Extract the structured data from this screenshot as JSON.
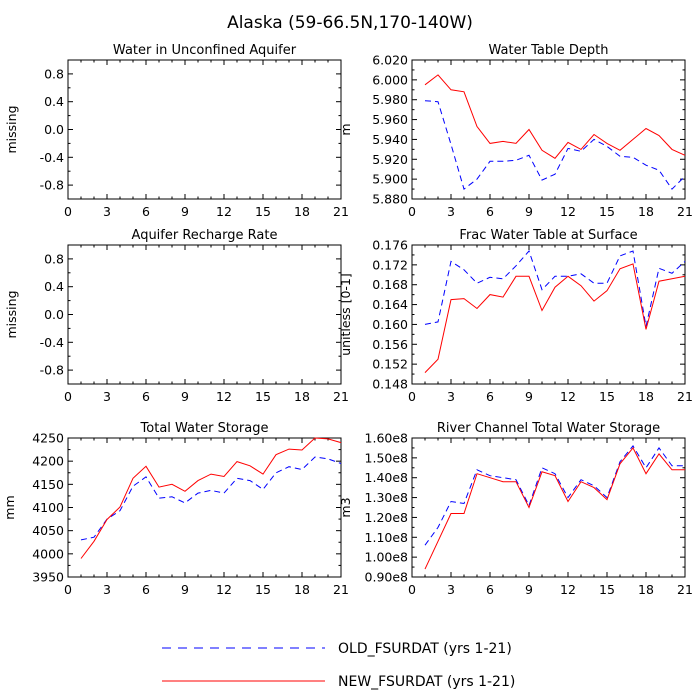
{
  "title": "Alaska (59-66.5N,170-140W)",
  "legend": [
    {
      "label": "OLD_FSURDAT (yrs 1-21)",
      "color": "#0000ff",
      "dash": "dashed"
    },
    {
      "label": "NEW_FSURDAT (yrs 1-21)",
      "color": "#ff0000",
      "dash": "solid"
    }
  ],
  "chart_data": [
    {
      "type": "line",
      "title": "Water in Unconfined Aquifer",
      "xlabel": "",
      "ylabel": "missing",
      "xlim": [
        0,
        21
      ],
      "ylim": [
        -1.0,
        1.0
      ],
      "xticks": [
        0,
        3,
        6,
        9,
        12,
        15,
        18,
        21
      ],
      "xtick_labels": [
        "0",
        "3",
        "6",
        "9",
        "12",
        "15",
        "18",
        "21"
      ],
      "yticks": [
        -0.8,
        -0.4,
        0.0,
        0.4,
        0.8
      ],
      "ytick_labels": [
        "-0.8",
        "-0.4",
        "0.0",
        "0.4",
        "0.8"
      ],
      "x": [],
      "series": []
    },
    {
      "type": "line",
      "title": "Water Table Depth",
      "xlabel": "",
      "ylabel": "m",
      "xlim": [
        0,
        21
      ],
      "ylim": [
        5.88,
        6.02
      ],
      "xticks": [
        0,
        3,
        6,
        9,
        12,
        15,
        18,
        21
      ],
      "xtick_labels": [
        "0",
        "3",
        "6",
        "9",
        "12",
        "15",
        "18",
        "21"
      ],
      "yticks": [
        5.88,
        5.9,
        5.92,
        5.94,
        5.96,
        5.98,
        6.0,
        6.02
      ],
      "ytick_labels": [
        "5.880",
        "5.900",
        "5.920",
        "5.940",
        "5.960",
        "5.980",
        "6.000",
        "6.020"
      ],
      "x": [
        1,
        2,
        3,
        4,
        5,
        6,
        7,
        8,
        9,
        10,
        11,
        12,
        13,
        14,
        15,
        16,
        17,
        18,
        19,
        20,
        21
      ],
      "series": [
        {
          "name": "OLD_FSURDAT (yrs 1-21)",
          "color": "#0000ff",
          "dash": "dashed",
          "values": [
            5.979,
            5.978,
            5.935,
            5.89,
            5.9,
            5.918,
            5.918,
            5.919,
            5.924,
            5.899,
            5.905,
            5.931,
            5.928,
            5.94,
            5.933,
            5.923,
            5.922,
            5.914,
            5.909,
            5.89,
            5.903
          ]
        },
        {
          "name": "NEW_FSURDAT (yrs 1-21)",
          "color": "#ff0000",
          "dash": "solid",
          "values": [
            5.995,
            6.005,
            5.99,
            5.988,
            5.953,
            5.936,
            5.938,
            5.936,
            5.95,
            5.929,
            5.921,
            5.937,
            5.93,
            5.945,
            5.936,
            5.929,
            5.94,
            5.951,
            5.944,
            5.93,
            5.924
          ]
        }
      ]
    },
    {
      "type": "line",
      "title": "Aquifer Recharge Rate",
      "xlabel": "",
      "ylabel": "missing",
      "xlim": [
        0,
        21
      ],
      "ylim": [
        -1.0,
        1.0
      ],
      "xticks": [
        0,
        3,
        6,
        9,
        12,
        15,
        18,
        21
      ],
      "xtick_labels": [
        "0",
        "3",
        "6",
        "9",
        "12",
        "15",
        "18",
        "21"
      ],
      "yticks": [
        -0.8,
        -0.4,
        0.0,
        0.4,
        0.8
      ],
      "ytick_labels": [
        "-0.8",
        "-0.4",
        "0.0",
        "0.4",
        "0.8"
      ],
      "x": [],
      "series": []
    },
    {
      "type": "line",
      "title": "Frac Water Table at Surface",
      "xlabel": "",
      "ylabel": "unitless [0-1]",
      "xlim": [
        0,
        21
      ],
      "ylim": [
        0.148,
        0.176
      ],
      "xticks": [
        0,
        3,
        6,
        9,
        12,
        15,
        18,
        21
      ],
      "xtick_labels": [
        "0",
        "3",
        "6",
        "9",
        "12",
        "15",
        "18",
        "21"
      ],
      "yticks": [
        0.148,
        0.152,
        0.156,
        0.16,
        0.164,
        0.168,
        0.172,
        0.176
      ],
      "ytick_labels": [
        "0.148",
        "0.152",
        "0.156",
        "0.160",
        "0.164",
        "0.168",
        "0.172",
        "0.176"
      ],
      "x": [
        1,
        2,
        3,
        4,
        5,
        6,
        7,
        8,
        9,
        10,
        11,
        12,
        13,
        14,
        15,
        16,
        17,
        18,
        19,
        20,
        21
      ],
      "series": [
        {
          "name": "OLD_FSURDAT (yrs 1-21)",
          "color": "#0000ff",
          "dash": "dashed",
          "values": [
            0.16,
            0.1605,
            0.1727,
            0.171,
            0.1683,
            0.1695,
            0.1692,
            0.1718,
            0.1748,
            0.167,
            0.1697,
            0.1697,
            0.1702,
            0.1683,
            0.1683,
            0.1738,
            0.1748,
            0.1596,
            0.1713,
            0.1703,
            0.1727
          ]
        },
        {
          "name": "NEW_FSURDAT (yrs 1-21)",
          "color": "#ff0000",
          "dash": "solid",
          "values": [
            0.1503,
            0.153,
            0.165,
            0.1652,
            0.1632,
            0.166,
            0.1655,
            0.1697,
            0.1697,
            0.1628,
            0.1675,
            0.1697,
            0.1678,
            0.1647,
            0.1668,
            0.1712,
            0.1722,
            0.159,
            0.1687,
            0.1692,
            0.1697
          ]
        }
      ]
    },
    {
      "type": "line",
      "title": "Total Water Storage",
      "xlabel": "",
      "ylabel": "mm",
      "xlim": [
        0,
        21
      ],
      "ylim": [
        3950,
        4250
      ],
      "xticks": [
        0,
        3,
        6,
        9,
        12,
        15,
        18,
        21
      ],
      "xtick_labels": [
        "0",
        "3",
        "6",
        "9",
        "12",
        "15",
        "18",
        "21"
      ],
      "yticks": [
        3950,
        4000,
        4050,
        4100,
        4150,
        4200,
        4250
      ],
      "ytick_labels": [
        "3950",
        "4000",
        "4050",
        "4100",
        "4150",
        "4200",
        "4250"
      ],
      "x": [
        1,
        2,
        3,
        4,
        5,
        6,
        7,
        8,
        9,
        10,
        11,
        12,
        13,
        14,
        15,
        16,
        17,
        18,
        19,
        20,
        21
      ],
      "series": [
        {
          "name": "OLD_FSURDAT (yrs 1-21)",
          "color": "#0000ff",
          "dash": "dashed",
          "values": [
            4030,
            4036,
            4075,
            4093,
            4146,
            4166,
            4120,
            4123,
            4110,
            4131,
            4137,
            4131,
            4163,
            4158,
            4139,
            4175,
            4188,
            4182,
            4209,
            4205,
            4195
          ]
        },
        {
          "name": "NEW_FSURDAT (yrs 1-21)",
          "color": "#ff0000",
          "dash": "solid",
          "values": [
            3990,
            4027,
            4074,
            4101,
            4163,
            4189,
            4144,
            4150,
            4135,
            4158,
            4172,
            4167,
            4199,
            4190,
            4172,
            4214,
            4226,
            4224,
            4250,
            4248,
            4240
          ]
        }
      ]
    },
    {
      "type": "line",
      "title": "River Channel Total Water Storage",
      "xlabel": "",
      "ylabel": "m3",
      "xlim": [
        0,
        21
      ],
      "ylim": [
        90000000.0,
        160000000.0
      ],
      "xticks": [
        0,
        3,
        6,
        9,
        12,
        15,
        18,
        21
      ],
      "xtick_labels": [
        "0",
        "3",
        "6",
        "9",
        "12",
        "15",
        "18",
        "21"
      ],
      "yticks": [
        90000000.0,
        100000000.0,
        110000000.0,
        120000000.0,
        130000000.0,
        140000000.0,
        150000000.0,
        160000000.0
      ],
      "ytick_labels": [
        "0.90e8",
        "1.00e8",
        "1.10e8",
        "1.20e8",
        "1.30e8",
        "1.40e8",
        "1.50e8",
        "1.60e8"
      ],
      "x": [
        1,
        2,
        3,
        4,
        5,
        6,
        7,
        8,
        9,
        10,
        11,
        12,
        13,
        14,
        15,
        16,
        17,
        18,
        19,
        20,
        21
      ],
      "series": [
        {
          "name": "OLD_FSURDAT (yrs 1-21)",
          "color": "#0000ff",
          "dash": "dashed",
          "values": [
            106000000.0,
            115000000.0,
            128000000.0,
            127000000.0,
            144000000.0,
            141000000.0,
            140000000.0,
            139000000.0,
            126000000.0,
            145000000.0,
            142000000.0,
            130000000.0,
            139000000.0,
            136000000.0,
            130000000.0,
            148000000.0,
            156000000.0,
            145000000.0,
            155000000.0,
            146000000.0,
            146000000.0
          ]
        },
        {
          "name": "NEW_FSURDAT (yrs 1-21)",
          "color": "#ff0000",
          "dash": "solid",
          "values": [
            94000000.0,
            108000000.0,
            122000000.0,
            122000000.0,
            142000000.0,
            140000000.0,
            138000000.0,
            138000000.0,
            125000000.0,
            143000000.0,
            141000000.0,
            128000000.0,
            138000000.0,
            135000000.0,
            129000000.0,
            147000000.0,
            155000000.0,
            142000000.0,
            152000000.0,
            144000000.0,
            144000000.0
          ]
        }
      ]
    }
  ]
}
